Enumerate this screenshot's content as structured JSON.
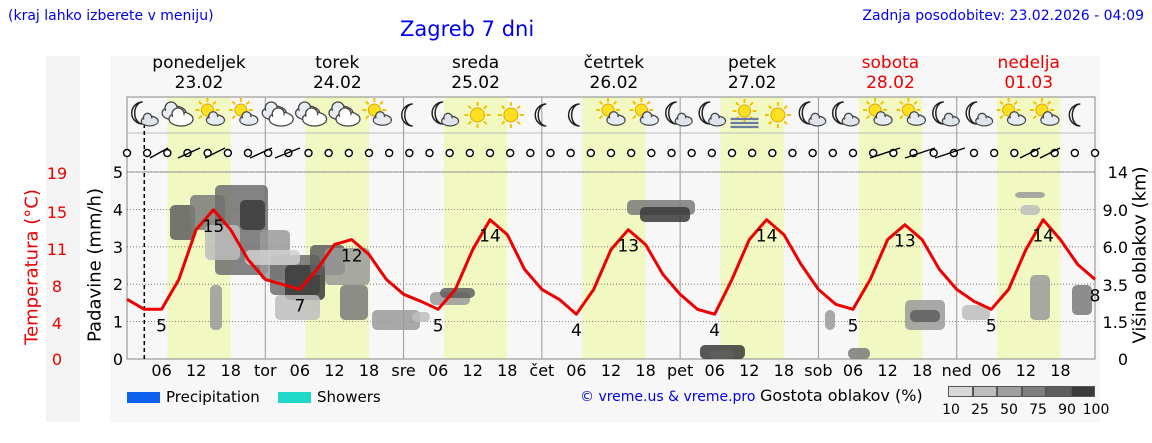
{
  "header": {
    "menu_hint": "(kraj lahko izberete v meniju)",
    "title": "Zagreb 7 dni",
    "last_update": "Zadnja posodobitev: 23.02.2026 - 04:09"
  },
  "days": [
    {
      "name": "ponedeljek",
      "date": "23.02",
      "weekend": false
    },
    {
      "name": "torek",
      "date": "24.02",
      "weekend": false
    },
    {
      "name": "sreda",
      "date": "25.02",
      "weekend": false
    },
    {
      "name": "četrtek",
      "date": "26.02",
      "weekend": false
    },
    {
      "name": "petek",
      "date": "27.02",
      "weekend": false
    },
    {
      "name": "sobota",
      "date": "28.02",
      "weekend": true
    },
    {
      "name": "nedelja",
      "date": "01.03",
      "weekend": true
    }
  ],
  "chart_data": {
    "type": "line",
    "title": "Zagreb 7 dni",
    "x_tick_labels": [
      "06",
      "12",
      "18",
      "tor",
      "06",
      "12",
      "18",
      "sre",
      "06",
      "12",
      "18",
      "čet",
      "06",
      "12",
      "18",
      "pet",
      "06",
      "12",
      "18",
      "sob",
      "06",
      "12",
      "18",
      "ned",
      "06",
      "12",
      "18"
    ],
    "left_axes": {
      "temperature": {
        "label": "Temperatura (°C)",
        "ticks": [
          "0",
          "4",
          "8",
          "11",
          "15",
          "19"
        ]
      },
      "precipitation": {
        "label": "Padavine (mm/h)",
        "ticks": [
          "0",
          "1",
          "2",
          "3",
          "4",
          "5"
        ]
      }
    },
    "right_axis": {
      "label": "Višina oblakov (km)",
      "ticks": [
        "0",
        "1.5",
        "3.5",
        "6.0",
        "9.0",
        "14"
      ]
    },
    "temperature_series": {
      "name": "Temperatura",
      "color": "#ee0000",
      "x_hours": [
        0,
        3,
        6,
        9,
        12,
        15,
        18,
        21,
        24,
        27,
        30,
        33,
        36,
        39,
        42,
        45,
        48,
        51,
        54,
        57,
        60,
        63,
        66,
        69,
        72,
        75,
        78,
        81,
        84,
        87,
        90,
        93,
        96,
        99,
        102,
        105,
        108,
        111,
        114,
        117,
        120,
        123,
        126,
        129,
        132,
        135,
        138,
        141,
        144,
        147,
        150,
        153,
        156,
        159,
        162,
        165,
        168
      ],
      "values": [
        6,
        5,
        5,
        8,
        13,
        15,
        13,
        10,
        8,
        7.5,
        7,
        9,
        11.5,
        12,
        10.5,
        8,
        6.5,
        5.8,
        5,
        7,
        11,
        14,
        12.5,
        9,
        7,
        6,
        4.5,
        7,
        11,
        13,
        11.5,
        8.5,
        6.5,
        5,
        4.5,
        8,
        12,
        14,
        12.5,
        9.5,
        7,
        5.5,
        5,
        8,
        12,
        13.5,
        12,
        9,
        7,
        5.8,
        5,
        7,
        11,
        14,
        12,
        9.5,
        8
      ]
    },
    "extremes": [
      {
        "label": "5",
        "x_hour": 6,
        "type": "min"
      },
      {
        "label": "15",
        "x_hour": 15,
        "type": "max"
      },
      {
        "label": "7",
        "x_hour": 30,
        "type": "min"
      },
      {
        "label": "12",
        "x_hour": 39,
        "type": "max"
      },
      {
        "label": "5",
        "x_hour": 54,
        "type": "min"
      },
      {
        "label": "14",
        "x_hour": 63,
        "type": "max"
      },
      {
        "label": "4",
        "x_hour": 78,
        "type": "min"
      },
      {
        "label": "13",
        "x_hour": 87,
        "type": "max"
      },
      {
        "label": "4",
        "x_hour": 102,
        "type": "min"
      },
      {
        "label": "14",
        "x_hour": 111,
        "type": "max"
      },
      {
        "label": "5",
        "x_hour": 126,
        "type": "min"
      },
      {
        "label": "13",
        "x_hour": 135,
        "type": "max"
      },
      {
        "label": "5",
        "x_hour": 150,
        "type": "min"
      },
      {
        "label": "14",
        "x_hour": 159,
        "type": "max"
      },
      {
        "label": "8",
        "x_hour": 168,
        "type": "end"
      }
    ],
    "legend": {
      "items": [
        {
          "label": "Precipitation",
          "color": "#1060ee"
        },
        {
          "label": "Showers",
          "color": "#20d8c8"
        }
      ],
      "cloud_density_label": "Gostota oblakov (%)",
      "cloud_density_ticks": [
        "10",
        "25",
        "50",
        "75",
        "90",
        "100"
      ],
      "cloud_density_colors": [
        "#d8d8d8",
        "#bdbdbd",
        "#9e9e9e",
        "#7e7e7e",
        "#5e5e5e",
        "#3a3a3a"
      ]
    },
    "grid": true
  },
  "credit": "© vreme.us & vreme.pro",
  "icons": {
    "row": [
      "night-partly-cloudy-icon",
      "cloudy-icon",
      "sun-cloud-icon",
      "sun-cloud-icon",
      "cloudy-icon",
      "cloudy-icon",
      "cloudy-icon",
      "sun-cloud-icon",
      "moon-icon",
      "night-partly-cloudy-icon",
      "sun-icon",
      "sun-icon",
      "moon-icon",
      "moon-icon",
      "sun-cloud-icon",
      "sun-cloud-icon",
      "night-partly-cloudy-icon",
      "night-partly-cloudy-icon",
      "sun-fog-icon",
      "sun-icon",
      "night-partly-cloudy-icon",
      "night-partly-cloudy-icon",
      "sun-cloud-icon",
      "sun-cloud-icon",
      "night-partly-cloudy-icon",
      "night-partly-cloudy-icon",
      "sun-cloud-icon",
      "sun-cloud-icon",
      "moon-icon"
    ]
  }
}
